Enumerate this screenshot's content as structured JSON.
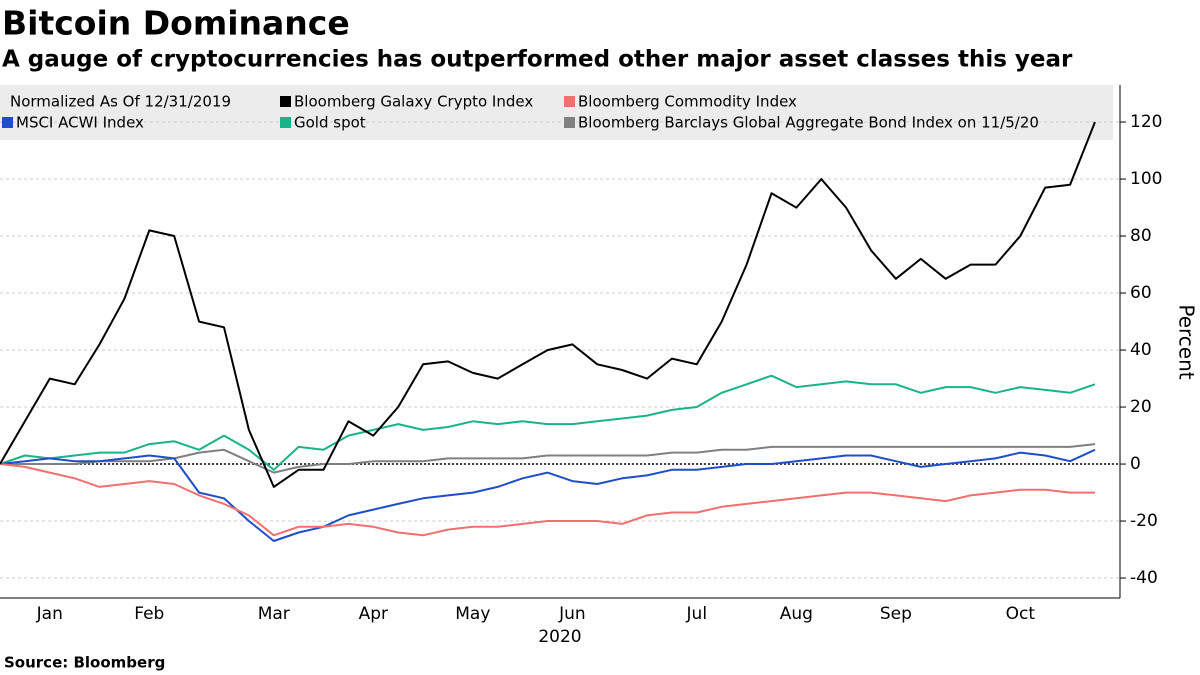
{
  "chart_data": {
    "type": "line",
    "title": "Bitcoin Dominance",
    "subtitle": "A gauge of cryptocurrencies has outperformed other major asset classes this year",
    "legend_title": "Normalized As Of 12/31/2019",
    "ylabel": "Percent",
    "xlabel": "2020",
    "source": "Source: Bloomberg",
    "categories": [
      null,
      null,
      "Jan",
      null,
      null,
      null,
      "Feb",
      null,
      null,
      null,
      null,
      "Mar",
      null,
      null,
      null,
      "Apr",
      null,
      null,
      null,
      "May",
      null,
      null,
      null,
      "Jun",
      null,
      null,
      null,
      null,
      "Jul",
      null,
      null,
      null,
      "Aug",
      null,
      null,
      null,
      "Sep",
      null,
      null,
      null,
      null,
      "Oct",
      null,
      null,
      null
    ],
    "series": [
      {
        "name": "Bloomberg Galaxy Crypto Index",
        "color": "#000000",
        "values": [
          0,
          15,
          30,
          28,
          42,
          58,
          82,
          80,
          50,
          48,
          12,
          -8,
          -2,
          -2,
          15,
          10,
          20,
          35,
          36,
          32,
          30,
          35,
          40,
          42,
          35,
          33,
          30,
          37,
          35,
          50,
          70,
          95,
          90,
          100,
          90,
          75,
          65,
          72,
          65,
          70,
          70,
          80,
          97,
          98,
          120
        ]
      },
      {
        "name": "Bloomberg Commodity Index",
        "color": "#f07070",
        "values": [
          0,
          -1,
          -3,
          -5,
          -8,
          -7,
          -6,
          -7,
          -11,
          -14,
          -18,
          -25,
          -22,
          -22,
          -21,
          -22,
          -24,
          -25,
          -23,
          -22,
          -22,
          -21,
          -20,
          -20,
          -20,
          -21,
          -18,
          -17,
          -17,
          -15,
          -14,
          -13,
          -12,
          -11,
          -10,
          -10,
          -11,
          -12,
          -13,
          -11,
          -10,
          -9,
          -9,
          -10,
          -10
        ]
      },
      {
        "name": "MSCI ACWI Index",
        "color": "#1f4fc8",
        "values": [
          0,
          1,
          2,
          1,
          1,
          2,
          3,
          2,
          -10,
          -12,
          -20,
          -27,
          -24,
          -22,
          -18,
          -16,
          -14,
          -12,
          -11,
          -10,
          -8,
          -5,
          -3,
          -6,
          -7,
          -5,
          -4,
          -2,
          -2,
          -1,
          0,
          0,
          1,
          2,
          3,
          3,
          1,
          -1,
          0,
          1,
          2,
          4,
          3,
          1,
          5
        ]
      },
      {
        "name": "Gold spot",
        "color": "#19b38a",
        "values": [
          0,
          3,
          2,
          3,
          4,
          4,
          7,
          8,
          5,
          10,
          5,
          -2,
          6,
          5,
          10,
          12,
          14,
          12,
          13,
          15,
          14,
          15,
          14,
          14,
          15,
          16,
          17,
          19,
          20,
          25,
          28,
          31,
          27,
          28,
          29,
          28,
          28,
          25,
          27,
          27,
          25,
          27,
          26,
          25,
          28
        ]
      },
      {
        "name": "Bloomberg Barclays Global Aggregate Bond Index on 11/5/20",
        "color": "#808080",
        "values": [
          0,
          0,
          0,
          0,
          1,
          1,
          1,
          2,
          4,
          5,
          1,
          -3,
          -1,
          0,
          0,
          1,
          1,
          1,
          2,
          2,
          2,
          2,
          3,
          3,
          3,
          3,
          3,
          4,
          4,
          5,
          5,
          6,
          6,
          6,
          6,
          6,
          6,
          6,
          6,
          6,
          6,
          6,
          6,
          6,
          7
        ]
      }
    ],
    "ylim": [
      -47,
      133
    ],
    "yticks": [
      -40,
      -20,
      0,
      20,
      40,
      60,
      80,
      100,
      120
    ],
    "grid": true,
    "zero_line": true,
    "y_axis_side": "right"
  }
}
